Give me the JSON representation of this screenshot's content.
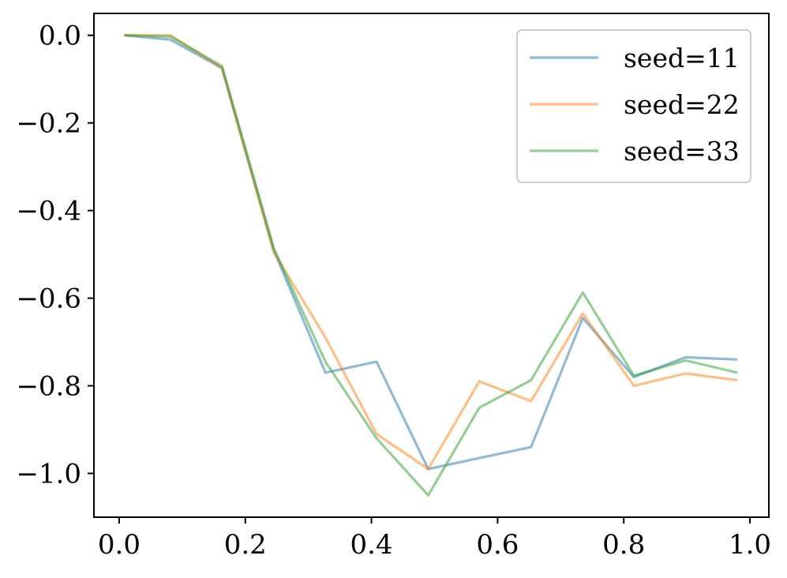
{
  "chart_data": {
    "type": "line",
    "title": "",
    "xlabel": "",
    "ylabel": "",
    "xlim": [
      -0.04,
      1.03
    ],
    "ylim": [
      -1.1,
      0.05
    ],
    "xticks": [
      0.0,
      0.2,
      0.4,
      0.6,
      0.8,
      1.0
    ],
    "xtick_labels": [
      "0.0",
      "0.2",
      "0.4",
      "0.6",
      "0.8",
      "1.0"
    ],
    "yticks": [
      0.0,
      -0.2,
      -0.4,
      -0.6,
      -0.8,
      -1.0
    ],
    "ytick_labels": [
      "0.0",
      "−0.2",
      "−0.4",
      "−0.6",
      "−0.8",
      "−1.0"
    ],
    "grid": false,
    "legend_position": "top-right",
    "x": [
      0.008,
      0.0816,
      0.163,
      0.245,
      0.327,
      0.408,
      0.49,
      0.571,
      0.653,
      0.735,
      0.816,
      0.898,
      0.98
    ],
    "series": [
      {
        "name": "seed=11",
        "color": "#1f77b4",
        "values": [
          0.0,
          -0.01,
          -0.075,
          -0.49,
          -0.77,
          -0.745,
          -0.99,
          -0.965,
          -0.94,
          -0.645,
          -0.78,
          -0.735,
          -0.74
        ]
      },
      {
        "name": "seed=22",
        "color": "#ff7f0e",
        "values": [
          0.0,
          0.0,
          -0.075,
          -0.495,
          -0.69,
          -0.91,
          -0.99,
          -0.79,
          -0.835,
          -0.635,
          -0.8,
          -0.772,
          -0.787
        ]
      },
      {
        "name": "seed=33",
        "color": "#2ca02c",
        "values": [
          0.0,
          -0.003,
          -0.07,
          -0.485,
          -0.745,
          -0.92,
          -1.05,
          -0.85,
          -0.787,
          -0.587,
          -0.777,
          -0.742,
          -0.77
        ]
      }
    ]
  }
}
